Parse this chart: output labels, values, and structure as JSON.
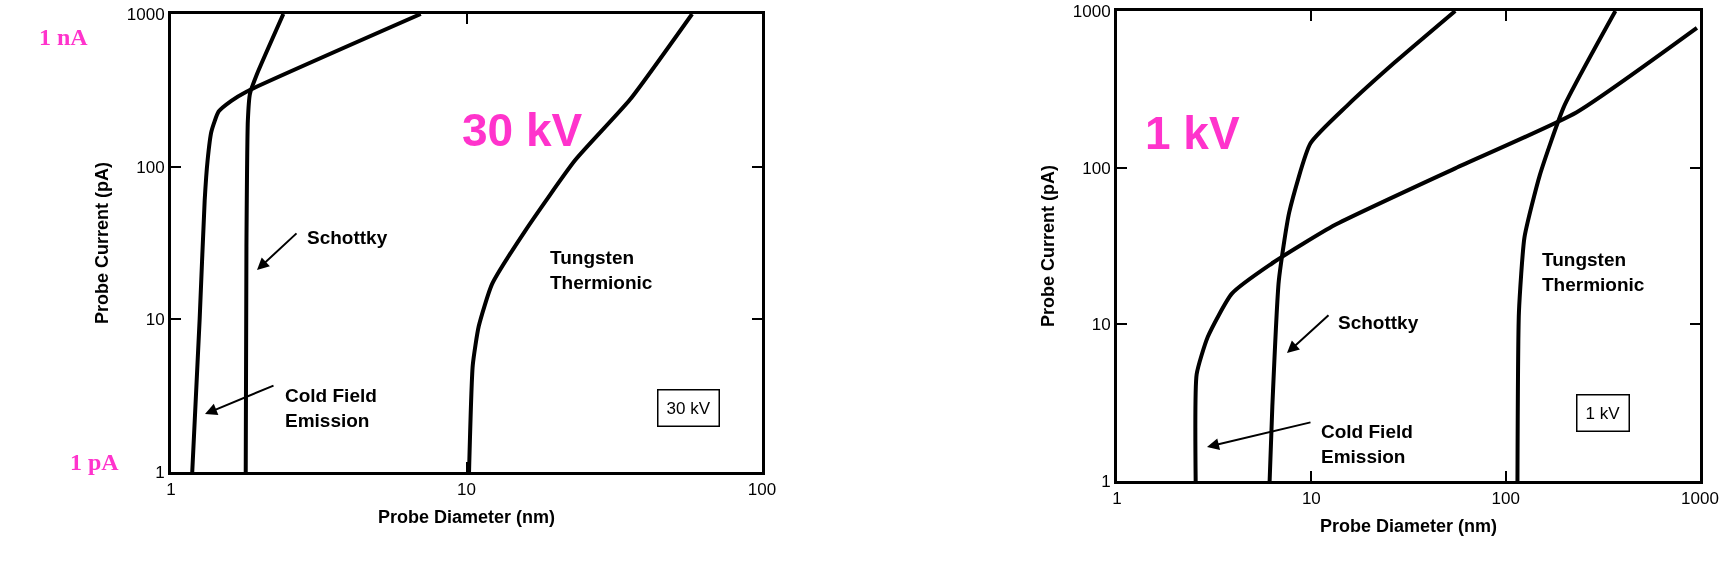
{
  "chart_data": [
    {
      "type": "line",
      "xlabel": "Probe Diameter (nm)",
      "ylabel": "Probe Current (pA)",
      "log": "xy",
      "xlim": [
        1,
        100
      ],
      "ylim": [
        1,
        1000
      ],
      "xticks": [
        1,
        10,
        100
      ],
      "yticks": [
        1,
        10,
        100,
        1000
      ],
      "marker": "none",
      "line_style": "solid",
      "series": [
        {
          "color": "#000000",
          "x": [
            1.18,
            1.25,
            1.3,
            1.33,
            1.37,
            1.45,
            1.6,
            1.8,
            7
          ],
          "values": [
            1,
            10,
            60,
            110,
            170,
            230,
            270,
            310,
            1000
          ]
        },
        {
          "color": "#000000",
          "x": [
            1.79,
            1.8,
            1.82,
            1.85,
            1.95,
            2.4
          ],
          "values": [
            1,
            30,
            200,
            300,
            400,
            1000
          ]
        },
        {
          "color": "#000000",
          "x": [
            10.2,
            10.5,
            11,
            12.2,
            15.8,
            23.3,
            35.7,
            58
          ],
          "values": [
            1,
            5,
            9,
            17,
            38,
            110,
            274,
            1000
          ]
        }
      ],
      "annotations": [
        "30 kV",
        "30 kV",
        "1 nA",
        "1 pA",
        "Schottky",
        "Cold Field\nEmission",
        "Tungsten\nThermionic"
      ]
    },
    {
      "type": "line",
      "xlabel": "Probe Diameter (nm)",
      "ylabel": "Probe Current (pA)",
      "log": "xy",
      "xlim": [
        1,
        1000
      ],
      "ylim": [
        1,
        1000
      ],
      "xticks": [
        1,
        10,
        100,
        1000
      ],
      "yticks": [
        1,
        10,
        100,
        1000
      ],
      "marker": "none",
      "line_style": "solid",
      "series": [
        {
          "color": "#000000",
          "x": [
            2.54,
            2.57,
            2.93,
            3.9,
            6.4,
            13.2,
            55,
            231,
            964
          ],
          "values": [
            1,
            4.8,
            8.3,
            15.7,
            24.9,
            43,
            99,
            225,
            780
          ]
        },
        {
          "color": "#000000",
          "x": [
            6.1,
            6.3,
            6.8,
            7.7,
            9.9,
            15.2,
            26.9,
            55
          ],
          "values": [
            1,
            3,
            18.9,
            52,
            143,
            247,
            470,
            1000
          ]
        },
        {
          "color": "#000000",
          "x": [
            115,
            117,
            125,
            150,
            200,
            367
          ],
          "values": [
            1,
            11.9,
            36,
            90,
            247,
            1000
          ]
        }
      ],
      "annotations": [
        "1 kV",
        "1 kV",
        "Schottky",
        "Cold Field\nEmission",
        "Tungsten\nThermionic"
      ]
    }
  ]
}
